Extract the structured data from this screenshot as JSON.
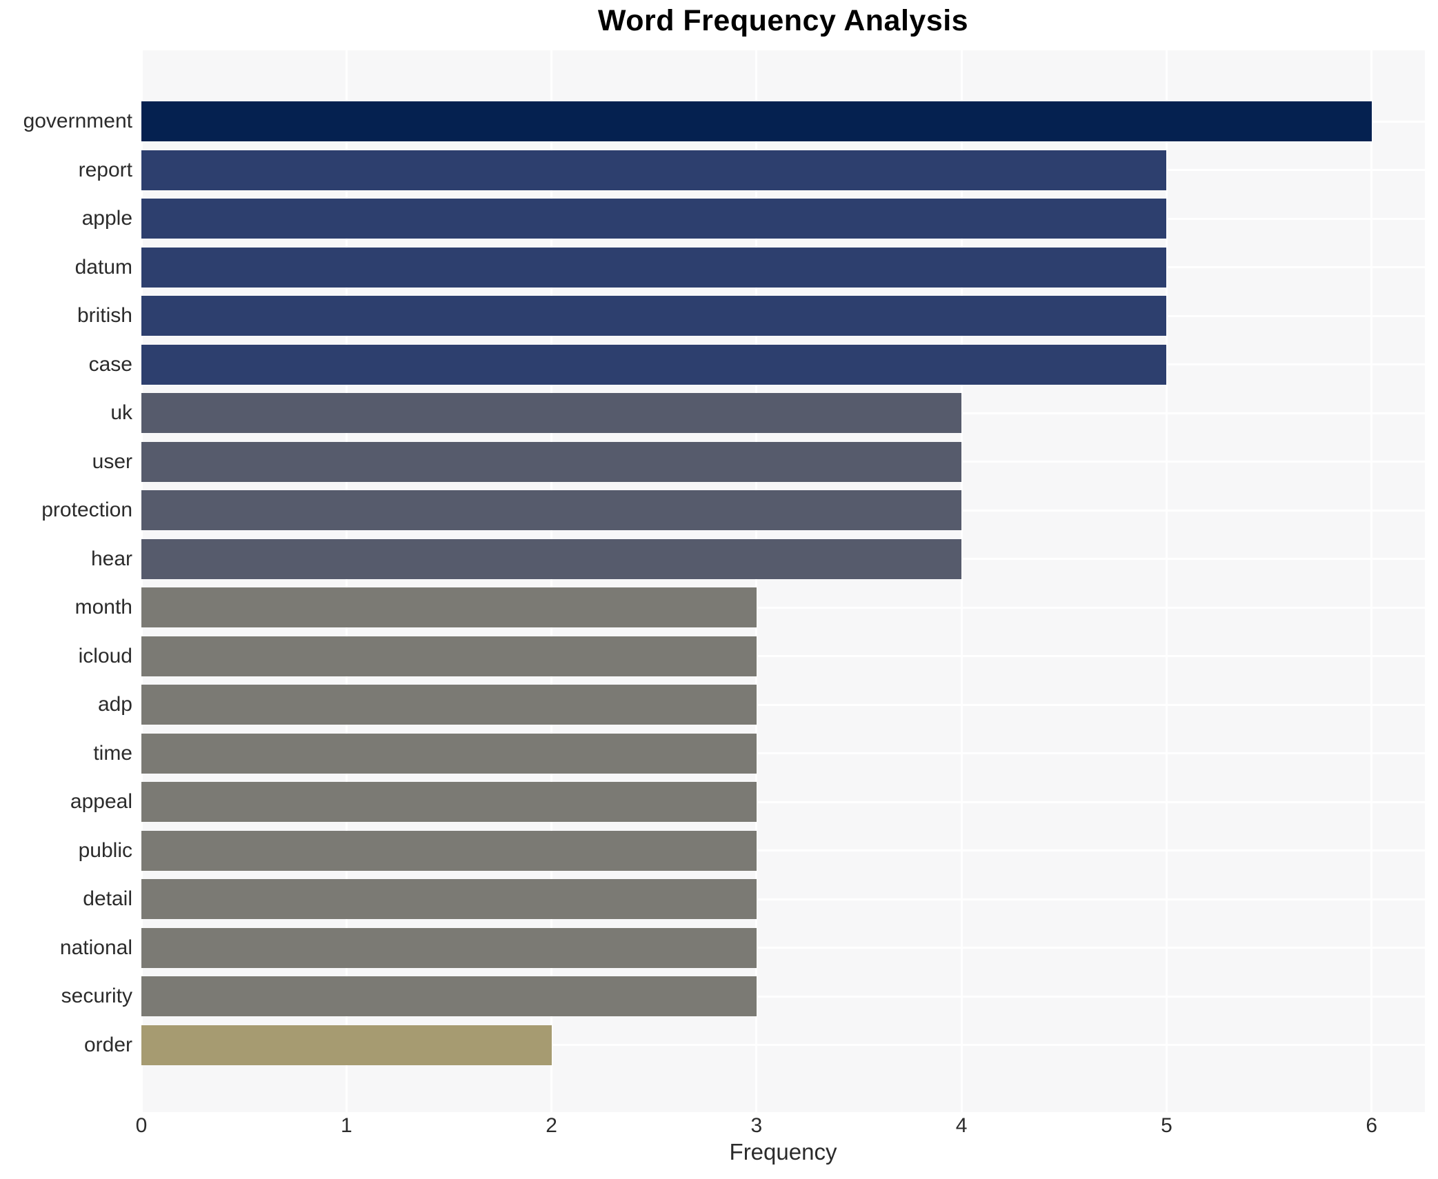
{
  "chart_data": {
    "type": "bar",
    "orientation": "horizontal",
    "title": "Word Frequency Analysis",
    "xlabel": "Frequency",
    "ylabel": "",
    "categories": [
      "government",
      "report",
      "apple",
      "datum",
      "british",
      "case",
      "uk",
      "user",
      "protection",
      "hear",
      "month",
      "icloud",
      "adp",
      "time",
      "appeal",
      "public",
      "detail",
      "national",
      "security",
      "order"
    ],
    "values": [
      6,
      5,
      5,
      5,
      5,
      5,
      4,
      4,
      4,
      4,
      3,
      3,
      3,
      3,
      3,
      3,
      3,
      3,
      3,
      2
    ],
    "bar_colors": [
      "#052150",
      "#2d3f6e",
      "#2d3f6e",
      "#2d3f6e",
      "#2d3f6e",
      "#2d3f6e",
      "#565b6c",
      "#565b6c",
      "#565b6c",
      "#565b6c",
      "#7b7a74",
      "#7b7a74",
      "#7b7a74",
      "#7b7a74",
      "#7b7a74",
      "#7b7a74",
      "#7b7a74",
      "#7b7a74",
      "#7b7a74",
      "#a69b71"
    ],
    "xlim": [
      0,
      6.26
    ],
    "xticks": [
      0,
      1,
      2,
      3,
      4,
      5,
      6
    ],
    "grid": "white major gridlines on light gray panel, vertical at integer ticks and horizontal at category centers",
    "legend": "none",
    "panel_bg": "#f7f7f8",
    "text_color": "#2b2b2b",
    "title_color": "#000000"
  }
}
